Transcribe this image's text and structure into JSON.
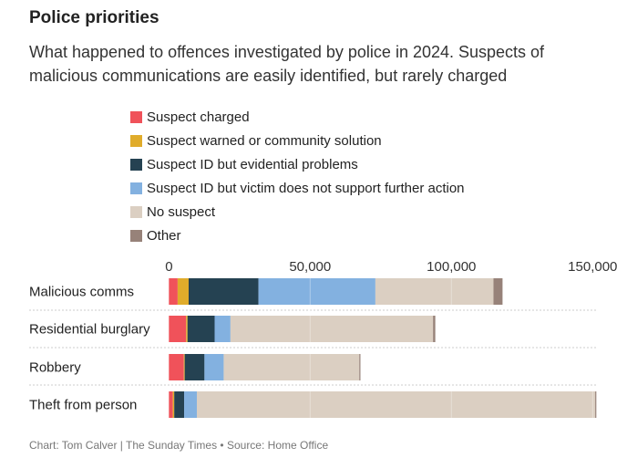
{
  "title": "Police priorities",
  "subtitle": "What happened to offences investigated by police in 2024. Suspects of malicious communications are easily identified, but rarely charged",
  "footer": "Chart: Tom Calver | The Sunday Times • Source: Home Office",
  "chart_data": {
    "type": "bar",
    "orientation": "horizontal",
    "stacked": true,
    "title": "Police priorities",
    "xlabel": "",
    "ylabel": "",
    "xlim": [
      0,
      152000
    ],
    "xticks": [
      0,
      50000,
      100000,
      150000
    ],
    "xtick_labels": [
      "0",
      "50,000",
      "100,000",
      "150,000"
    ],
    "legend_position": "top",
    "categories": [
      "Malicious comms",
      "Residential burglary",
      "Robbery",
      "Theft from person"
    ],
    "series": [
      {
        "name": "Suspect charged",
        "color": "#f0525a",
        "values": [
          3100,
          6100,
          5300,
          1400
        ]
      },
      {
        "name": "Suspect warned or community solution",
        "color": "#e0ac2b",
        "values": [
          3900,
          500,
          300,
          500
        ]
      },
      {
        "name": "Suspect ID but evidential problems",
        "color": "#254252",
        "values": [
          24700,
          9600,
          7000,
          3500
        ]
      },
      {
        "name": "Suspect ID but victim does not support further action",
        "color": "#83b1e0",
        "values": [
          41400,
          5600,
          6800,
          4500
        ]
      },
      {
        "name": "No suspect",
        "color": "#dbcfc2",
        "values": [
          41800,
          71700,
          48000,
          141000
        ]
      },
      {
        "name": "Other",
        "color": "#978279",
        "values": [
          3200,
          800,
          400,
          400
        ]
      }
    ]
  }
}
